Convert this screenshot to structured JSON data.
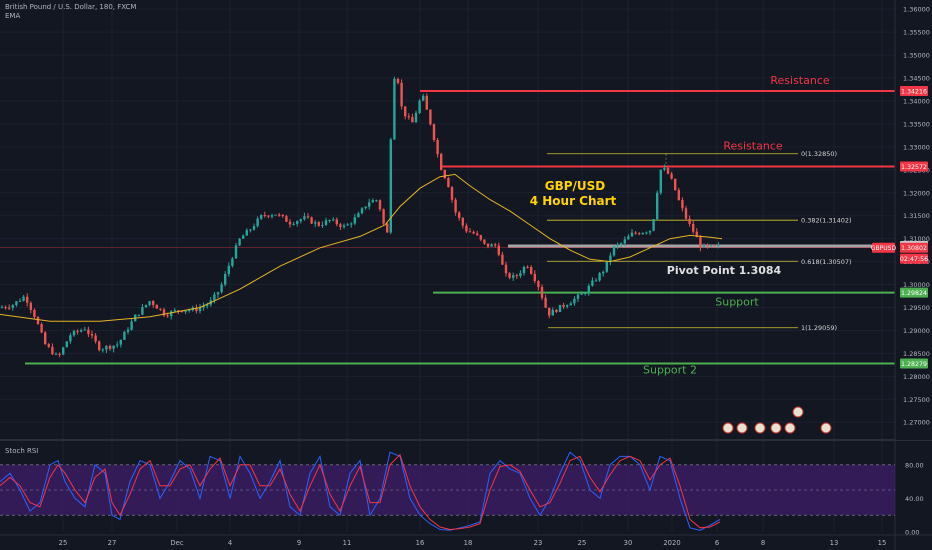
{
  "header": {
    "symbol_line": "British Pound / U.S. Dollar, 180, FXCM",
    "indicator": "EMA"
  },
  "colors": {
    "background": "#131722",
    "up_candle": "#26a69a",
    "down_candle": "#ef5350",
    "ema": "#e6b422",
    "resistance": "#f23645",
    "support": "#4caf50",
    "fib": "#d4c634",
    "pivot": "#c8c8c8",
    "rsi_k": "#2962ff",
    "rsi_d": "#f23645",
    "rsi_band": "#3f1d6b"
  },
  "chart_data": [
    {
      "type": "candlestick",
      "price_axis": [
        "1.36000",
        "1.35500",
        "1.35000",
        "1.34500",
        "1.34000",
        "1.33500",
        "1.33000",
        "1.32500",
        "1.32000",
        "1.31500",
        "1.31000",
        "1.30500",
        "1.30000",
        "1.29500",
        "1.29000",
        "1.28500",
        "1.28000",
        "1.27500",
        "1.27000"
      ],
      "ylim": [
        1.267,
        1.362
      ],
      "date_axis": [
        "25",
        "27",
        "Dec",
        "4",
        "9",
        "11",
        "16",
        "18",
        "23",
        "25",
        "30",
        "2020",
        "6",
        "8",
        "13",
        "15"
      ],
      "title": "GBP/USD",
      "subtitle": "4 Hour Chart",
      "series": [
        {
          "name": "GBPUSD",
          "type": "candles",
          "close_path": [
            [
              0,
              1.295
            ],
            [
              12,
              1.2955
            ],
            [
              25,
              1.2975
            ],
            [
              35,
              1.293
            ],
            [
              45,
              1.287
            ],
            [
              58,
              1.284
            ],
            [
              70,
              1.289
            ],
            [
              85,
              1.2905
            ],
            [
              100,
              1.286
            ],
            [
              118,
              1.287
            ],
            [
              135,
              1.293
            ],
            [
              150,
              1.2965
            ],
            [
              165,
              1.2935
            ],
            [
              180,
              1.2945
            ],
            [
              195,
              1.2945
            ],
            [
              210,
              1.296
            ],
            [
              220,
              1.299
            ],
            [
              232,
              1.306
            ],
            [
              240,
              1.31
            ],
            [
              250,
              1.312
            ],
            [
              262,
              1.315
            ],
            [
              275,
              1.3155
            ],
            [
              290,
              1.3135
            ],
            [
              305,
              1.3145
            ],
            [
              318,
              1.313
            ],
            [
              330,
              1.314
            ],
            [
              345,
              1.3125
            ],
            [
              358,
              1.315
            ],
            [
              368,
              1.318
            ],
            [
              378,
              1.3185
            ],
            [
              387,
              1.31
            ],
            [
              393,
              1.345
            ],
            [
              397,
              1.346
            ],
            [
              402,
              1.338
            ],
            [
              412,
              1.335
            ],
            [
              422,
              1.3415
            ],
            [
              432,
              1.334
            ],
            [
              440,
              1.326
            ],
            [
              448,
              1.322
            ],
            [
              455,
              1.316
            ],
            [
              465,
              1.312
            ],
            [
              475,
              1.311
            ],
            [
              485,
              1.3085
            ],
            [
              497,
              1.3085
            ],
            [
              505,
              1.302
            ],
            [
              515,
              1.3015
            ],
            [
              527,
              1.3045
            ],
            [
              538,
              1.3
            ],
            [
              548,
              1.2935
            ],
            [
              560,
              1.295
            ],
            [
              572,
              1.2965
            ],
            [
              583,
              1.298
            ],
            [
              595,
              1.301
            ],
            [
              605,
              1.3035
            ],
            [
              613,
              1.308
            ],
            [
              622,
              1.309
            ],
            [
              632,
              1.311
            ],
            [
              642,
              1.3115
            ],
            [
              652,
              1.312
            ],
            [
              660,
              1.325
            ],
            [
              666,
              1.325
            ],
            [
              673,
              1.322
            ],
            [
              680,
              1.3175
            ],
            [
              688,
              1.3135
            ],
            [
              695,
              1.311
            ],
            [
              700,
              1.3085
            ],
            [
              707,
              1.308
            ],
            [
              715,
              1.3082
            ]
          ]
        },
        {
          "name": "EMA",
          "type": "line",
          "path": [
            [
              0,
              1.2935
            ],
            [
              50,
              1.292
            ],
            [
              100,
              1.292
            ],
            [
              150,
              1.293
            ],
            [
              200,
              1.295
            ],
            [
              240,
              1.299
            ],
            [
              280,
              1.304
            ],
            [
              320,
              1.308
            ],
            [
              360,
              1.3105
            ],
            [
              385,
              1.313
            ],
            [
              400,
              1.317
            ],
            [
              420,
              1.321
            ],
            [
              440,
              1.3235
            ],
            [
              455,
              1.324
            ],
            [
              470,
              1.3215
            ],
            [
              490,
              1.3185
            ],
            [
              510,
              1.316
            ],
            [
              530,
              1.313
            ],
            [
              550,
              1.31
            ],
            [
              570,
              1.3075
            ],
            [
              590,
              1.3055
            ],
            [
              610,
              1.305
            ],
            [
              630,
              1.306
            ],
            [
              650,
              1.308
            ],
            [
              670,
              1.31
            ],
            [
              690,
              1.3107
            ],
            [
              710,
              1.3103
            ],
            [
              722,
              1.31
            ]
          ]
        }
      ],
      "levels": [
        {
          "name": "resistance-1",
          "label": "Resistance",
          "price": 1.34216,
          "axis_label": "1.34216",
          "color": "#f23645"
        },
        {
          "name": "resistance-2",
          "label": "Resistance",
          "price": 1.32572,
          "axis_label": "1.32572",
          "color": "#f23645"
        },
        {
          "name": "pivot",
          "label": "Pivot Point 1.3084",
          "price": 1.3084,
          "axis_label": "1.30840",
          "color": "#c8c8c8"
        },
        {
          "name": "current-price",
          "label": "GBPUSD",
          "price": 1.30802,
          "axis_label": "1.30802",
          "countdown": "02:47:56",
          "color": "#f23645"
        },
        {
          "name": "support-1",
          "label": "Support",
          "price": 1.29824,
          "axis_label": "1.29824",
          "color": "#4caf50"
        },
        {
          "name": "support-2",
          "label": "Support 2",
          "price": 1.28279,
          "axis_label": "1.28279",
          "color": "#4caf50"
        }
      ],
      "fibonacci": [
        {
          "level": "0",
          "label": "0(1.32850)",
          "price": 1.3285
        },
        {
          "level": "0.382",
          "label": "0.382(1.31402)",
          "price": 1.31402
        },
        {
          "level": "0.618",
          "label": "0.618(1.30507)",
          "price": 1.30507
        },
        {
          "level": "1",
          "label": "1(1.29059)",
          "price": 1.29059
        }
      ]
    },
    {
      "type": "line",
      "title": "Stoch RSI",
      "ylim": [
        0,
        100
      ],
      "y_ticks": [
        "80.00",
        "40.00",
        "0.00"
      ],
      "band": [
        20,
        80
      ],
      "series": [
        {
          "name": "K",
          "path": [
            [
              0,
              60
            ],
            [
              10,
              70
            ],
            [
              20,
              50
            ],
            [
              30,
              25
            ],
            [
              40,
              35
            ],
            [
              50,
              80
            ],
            [
              58,
              85
            ],
            [
              65,
              60
            ],
            [
              75,
              40
            ],
            [
              85,
              30
            ],
            [
              95,
              80
            ],
            [
              105,
              70
            ],
            [
              112,
              20
            ],
            [
              120,
              15
            ],
            [
              130,
              60
            ],
            [
              140,
              85
            ],
            [
              150,
              80
            ],
            [
              160,
              40
            ],
            [
              170,
              60
            ],
            [
              180,
              85
            ],
            [
              190,
              75
            ],
            [
              200,
              40
            ],
            [
              210,
              90
            ],
            [
              220,
              85
            ],
            [
              230,
              40
            ],
            [
              240,
              90
            ],
            [
              250,
              70
            ],
            [
              260,
              40
            ],
            [
              270,
              60
            ],
            [
              280,
              85
            ],
            [
              290,
              30
            ],
            [
              300,
              20
            ],
            [
              310,
              70
            ],
            [
              320,
              90
            ],
            [
              330,
              30
            ],
            [
              340,
              20
            ],
            [
              350,
              70
            ],
            [
              360,
              85
            ],
            [
              370,
              20
            ],
            [
              380,
              40
            ],
            [
              390,
              95
            ],
            [
              400,
              90
            ],
            [
              410,
              40
            ],
            [
              420,
              20
            ],
            [
              430,
              10
            ],
            [
              440,
              3
            ],
            [
              450,
              2
            ],
            [
              460,
              5
            ],
            [
              470,
              8
            ],
            [
              480,
              12
            ],
            [
              490,
              70
            ],
            [
              500,
              85
            ],
            [
              510,
              75
            ],
            [
              520,
              70
            ],
            [
              530,
              40
            ],
            [
              540,
              20
            ],
            [
              550,
              40
            ],
            [
              560,
              70
            ],
            [
              570,
              95
            ],
            [
              580,
              85
            ],
            [
              590,
              50
            ],
            [
              600,
              40
            ],
            [
              610,
              80
            ],
            [
              620,
              90
            ],
            [
              630,
              90
            ],
            [
              640,
              80
            ],
            [
              650,
              50
            ],
            [
              660,
              90
            ],
            [
              670,
              85
            ],
            [
              680,
              40
            ],
            [
              690,
              5
            ],
            [
              700,
              2
            ],
            [
              710,
              8
            ],
            [
              720,
              15
            ]
          ]
        },
        {
          "name": "D",
          "path": [
            [
              0,
              55
            ],
            [
              10,
              65
            ],
            [
              20,
              55
            ],
            [
              30,
              35
            ],
            [
              40,
              30
            ],
            [
              50,
              65
            ],
            [
              58,
              80
            ],
            [
              65,
              70
            ],
            [
              75,
              50
            ],
            [
              85,
              35
            ],
            [
              95,
              65
            ],
            [
              105,
              75
            ],
            [
              112,
              35
            ],
            [
              120,
              20
            ],
            [
              130,
              45
            ],
            [
              140,
              75
            ],
            [
              150,
              85
            ],
            [
              160,
              55
            ],
            [
              170,
              55
            ],
            [
              180,
              75
            ],
            [
              190,
              80
            ],
            [
              200,
              55
            ],
            [
              210,
              75
            ],
            [
              220,
              88
            ],
            [
              230,
              55
            ],
            [
              240,
              80
            ],
            [
              250,
              80
            ],
            [
              260,
              55
            ],
            [
              270,
              55
            ],
            [
              280,
              75
            ],
            [
              290,
              45
            ],
            [
              300,
              25
            ],
            [
              310,
              55
            ],
            [
              320,
              80
            ],
            [
              330,
              45
            ],
            [
              340,
              25
            ],
            [
              350,
              55
            ],
            [
              360,
              78
            ],
            [
              370,
              35
            ],
            [
              380,
              35
            ],
            [
              390,
              80
            ],
            [
              400,
              92
            ],
            [
              410,
              55
            ],
            [
              420,
              30
            ],
            [
              430,
              15
            ],
            [
              440,
              6
            ],
            [
              450,
              3
            ],
            [
              460,
              4
            ],
            [
              470,
              6
            ],
            [
              480,
              10
            ],
            [
              490,
              50
            ],
            [
              500,
              78
            ],
            [
              510,
              80
            ],
            [
              520,
              72
            ],
            [
              530,
              50
            ],
            [
              540,
              30
            ],
            [
              550,
              35
            ],
            [
              560,
              58
            ],
            [
              570,
              85
            ],
            [
              580,
              90
            ],
            [
              590,
              65
            ],
            [
              600,
              48
            ],
            [
              610,
              68
            ],
            [
              620,
              85
            ],
            [
              630,
              90
            ],
            [
              640,
              85
            ],
            [
              650,
              62
            ],
            [
              660,
              80
            ],
            [
              670,
              88
            ],
            [
              680,
              55
            ],
            [
              690,
              15
            ],
            [
              700,
              5
            ],
            [
              710,
              6
            ],
            [
              720,
              12
            ]
          ]
        }
      ]
    }
  ]
}
